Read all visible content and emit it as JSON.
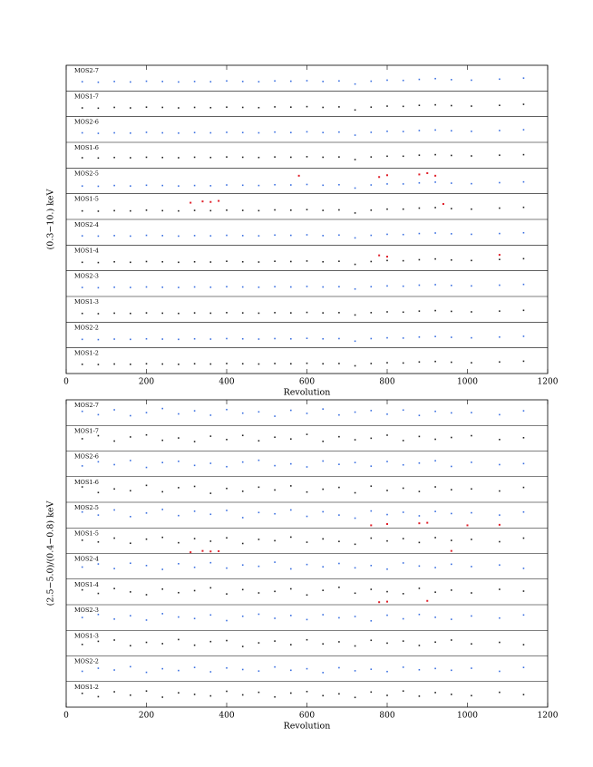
{
  "chart_data": [
    {
      "type": "scatter",
      "xlabel": "Revolution",
      "ylabel": "(0.3−10.) keV",
      "xlim": [
        0,
        1200
      ],
      "xticks": [
        0,
        200,
        400,
        600,
        800,
        1000,
        1200
      ],
      "ylim": [
        0,
        1
      ],
      "x": [
        40,
        80,
        120,
        160,
        200,
        240,
        280,
        320,
        360,
        400,
        440,
        480,
        520,
        560,
        600,
        640,
        680,
        720,
        760,
        800,
        840,
        880,
        920,
        960,
        1010,
        1080,
        1140
      ],
      "series": [
        {
          "name": "MOS2-7",
          "color": "#3a6fe0",
          "values": [
            0.36,
            0.34,
            0.37,
            0.35,
            0.38,
            0.37,
            0.35,
            0.37,
            0.36,
            0.39,
            0.37,
            0.36,
            0.39,
            0.38,
            0.4,
            0.37,
            0.39,
            0.27,
            0.38,
            0.42,
            0.41,
            0.45,
            0.48,
            0.44,
            0.42,
            0.46,
            0.5
          ]
        },
        {
          "name": "MOS1-7",
          "color": "#222222",
          "values": [
            0.34,
            0.33,
            0.36,
            0.34,
            0.37,
            0.36,
            0.34,
            0.36,
            0.35,
            0.37,
            0.36,
            0.35,
            0.38,
            0.37,
            0.39,
            0.36,
            0.38,
            0.26,
            0.37,
            0.41,
            0.4,
            0.44,
            0.46,
            0.43,
            0.41,
            0.44,
            0.48
          ]
        },
        {
          "name": "MOS2-6",
          "color": "#3a6fe0",
          "values": [
            0.37,
            0.35,
            0.37,
            0.36,
            0.39,
            0.37,
            0.36,
            0.38,
            0.37,
            0.39,
            0.38,
            0.37,
            0.4,
            0.38,
            0.41,
            0.38,
            0.4,
            0.28,
            0.39,
            0.43,
            0.42,
            0.46,
            0.48,
            0.45,
            0.43,
            0.46,
            0.49
          ]
        },
        {
          "name": "MOS1-6",
          "color": "#222222",
          "values": [
            0.4,
            0.39,
            0.41,
            0.4,
            0.42,
            0.41,
            0.4,
            0.42,
            0.41,
            0.43,
            0.42,
            0.41,
            0.43,
            0.42,
            0.44,
            0.42,
            0.43,
            0.33,
            0.43,
            0.46,
            0.46,
            0.5,
            0.52,
            0.49,
            0.47,
            0.5,
            0.52
          ]
        },
        {
          "name": "MOS2-5",
          "color": "#3a6fe0",
          "values": [
            0.3,
            0.29,
            0.32,
            0.3,
            0.33,
            0.32,
            0.3,
            0.32,
            0.31,
            0.34,
            0.33,
            0.32,
            0.35,
            0.34,
            0.36,
            0.33,
            0.35,
            0.22,
            0.34,
            0.38,
            0.38,
            0.42,
            0.45,
            0.41,
            0.39,
            0.43,
            0.46
          ],
          "highlight": {
            "color": "#e0202a",
            "x": [
              580,
              780,
              800,
              880,
              900,
              920
            ],
            "values": [
              0.7,
              0.65,
              0.72,
              0.75,
              0.8,
              0.7
            ]
          }
        },
        {
          "name": "MOS1-5",
          "color": "#222222",
          "values": [
            0.33,
            0.32,
            0.34,
            0.33,
            0.36,
            0.34,
            0.33,
            0.35,
            0.34,
            0.36,
            0.35,
            0.34,
            0.37,
            0.36,
            0.38,
            0.35,
            0.37,
            0.25,
            0.36,
            0.4,
            0.4,
            0.44,
            0.46,
            0.42,
            0.4,
            0.44,
            0.47
          ],
          "highlight": {
            "color": "#e0202a",
            "x": [
              310,
              340,
              360,
              380,
              940
            ],
            "values": [
              0.65,
              0.7,
              0.68,
              0.72,
              0.6
            ]
          }
        },
        {
          "name": "MOS2-4",
          "color": "#3a6fe0",
          "values": [
            0.36,
            0.35,
            0.37,
            0.35,
            0.38,
            0.37,
            0.35,
            0.37,
            0.36,
            0.38,
            0.37,
            0.36,
            0.39,
            0.38,
            0.4,
            0.37,
            0.39,
            0.28,
            0.38,
            0.42,
            0.41,
            0.45,
            0.47,
            0.44,
            0.42,
            0.45,
            0.48
          ]
        },
        {
          "name": "MOS1-4",
          "color": "#222222",
          "values": [
            0.33,
            0.32,
            0.35,
            0.33,
            0.36,
            0.35,
            0.33,
            0.35,
            0.34,
            0.37,
            0.35,
            0.34,
            0.37,
            0.36,
            0.38,
            0.35,
            0.37,
            0.25,
            0.36,
            0.4,
            0.39,
            0.43,
            0.46,
            0.42,
            0.4,
            0.44,
            0.47
          ],
          "highlight": {
            "color": "#e0202a",
            "x": [
              780,
              800,
              1080
            ],
            "values": [
              0.6,
              0.55,
              0.62
            ]
          }
        },
        {
          "name": "MOS2-3",
          "color": "#3a6fe0",
          "values": [
            0.35,
            0.34,
            0.36,
            0.35,
            0.37,
            0.36,
            0.35,
            0.37,
            0.36,
            0.38,
            0.37,
            0.36,
            0.38,
            0.37,
            0.39,
            0.37,
            0.38,
            0.29,
            0.38,
            0.41,
            0.4,
            0.44,
            0.46,
            0.43,
            0.41,
            0.44,
            0.47
          ]
        },
        {
          "name": "MOS1-3",
          "color": "#222222",
          "values": [
            0.34,
            0.33,
            0.35,
            0.34,
            0.36,
            0.35,
            0.34,
            0.36,
            0.35,
            0.37,
            0.36,
            0.35,
            0.37,
            0.36,
            0.38,
            0.36,
            0.37,
            0.28,
            0.37,
            0.4,
            0.39,
            0.43,
            0.45,
            0.42,
            0.4,
            0.43,
            0.46
          ]
        },
        {
          "name": "MOS2-2",
          "color": "#3a6fe0",
          "values": [
            0.33,
            0.32,
            0.34,
            0.33,
            0.35,
            0.34,
            0.33,
            0.35,
            0.34,
            0.36,
            0.35,
            0.34,
            0.36,
            0.35,
            0.37,
            0.35,
            0.36,
            0.26,
            0.36,
            0.39,
            0.38,
            0.42,
            0.44,
            0.41,
            0.39,
            0.42,
            0.45
          ]
        },
        {
          "name": "MOS1-2",
          "color": "#222222",
          "values": [
            0.36,
            0.35,
            0.37,
            0.36,
            0.38,
            0.37,
            0.36,
            0.38,
            0.37,
            0.39,
            0.38,
            0.37,
            0.39,
            0.38,
            0.4,
            0.38,
            0.39,
            0.3,
            0.39,
            0.42,
            0.41,
            0.45,
            0.47,
            0.44,
            0.42,
            0.45,
            0.48
          ]
        }
      ]
    },
    {
      "type": "scatter",
      "xlabel": "Revolution",
      "ylabel": "(2.5−5.0)/(0.4−0.8) keV",
      "xlim": [
        0,
        1200
      ],
      "xticks": [
        0,
        200,
        400,
        600,
        800,
        1000,
        1200
      ],
      "ylim": [
        0,
        1
      ],
      "x": [
        40,
        80,
        120,
        160,
        200,
        240,
        280,
        320,
        360,
        400,
        440,
        480,
        520,
        560,
        600,
        640,
        680,
        720,
        760,
        800,
        840,
        880,
        920,
        960,
        1010,
        1080,
        1140
      ],
      "series": [
        {
          "name": "MOS2-7",
          "color": "#3a6fe0",
          "values": [
            0.55,
            0.42,
            0.61,
            0.38,
            0.5,
            0.66,
            0.45,
            0.57,
            0.4,
            0.62,
            0.48,
            0.53,
            0.36,
            0.59,
            0.47,
            0.64,
            0.41,
            0.52,
            0.58,
            0.44,
            0.6,
            0.39,
            0.55,
            0.49,
            0.5,
            0.42,
            0.57
          ]
        },
        {
          "name": "MOS1-7",
          "color": "#222222",
          "values": [
            0.48,
            0.6,
            0.39,
            0.55,
            0.63,
            0.42,
            0.51,
            0.37,
            0.58,
            0.45,
            0.61,
            0.4,
            0.54,
            0.47,
            0.65,
            0.38,
            0.56,
            0.44,
            0.5,
            0.62,
            0.41,
            0.57,
            0.46,
            0.53,
            0.6,
            0.45,
            0.52
          ]
        },
        {
          "name": "MOS2-6",
          "color": "#3a6fe0",
          "values": [
            0.42,
            0.58,
            0.47,
            0.63,
            0.36,
            0.55,
            0.6,
            0.44,
            0.52,
            0.39,
            0.57,
            0.64,
            0.43,
            0.5,
            0.38,
            0.61,
            0.48,
            0.55,
            0.41,
            0.59,
            0.46,
            0.53,
            0.62,
            0.4,
            0.56,
            0.47,
            0.51
          ]
        },
        {
          "name": "MOS1-6",
          "color": "#222222",
          "values": [
            0.6,
            0.38,
            0.52,
            0.45,
            0.66,
            0.41,
            0.57,
            0.62,
            0.35,
            0.54,
            0.43,
            0.59,
            0.48,
            0.64,
            0.4,
            0.51,
            0.58,
            0.37,
            0.63,
            0.46,
            0.55,
            0.42,
            0.6,
            0.49,
            0.52,
            0.44,
            0.58
          ]
        },
        {
          "name": "MOS2-5",
          "color": "#3a6fe0",
          "values": [
            0.62,
            0.5,
            0.7,
            0.44,
            0.58,
            0.72,
            0.48,
            0.65,
            0.53,
            0.68,
            0.4,
            0.6,
            0.55,
            0.7,
            0.45,
            0.63,
            0.5,
            0.38,
            0.66,
            0.52,
            0.61,
            0.47,
            0.64,
            0.56,
            0.59,
            0.5,
            0.62
          ],
          "highlight": {
            "color": "#e0202a",
            "x": [
              760,
              800,
              880,
              900,
              1000,
              1080
            ],
            "values": [
              0.1,
              0.15,
              0.18,
              0.2,
              0.1,
              0.12
            ]
          }
        },
        {
          "name": "MOS1-5",
          "color": "#222222",
          "values": [
            0.52,
            0.45,
            0.6,
            0.4,
            0.56,
            0.63,
            0.42,
            0.58,
            0.48,
            0.61,
            0.39,
            0.55,
            0.5,
            0.64,
            0.44,
            0.57,
            0.47,
            0.36,
            0.6,
            0.49,
            0.58,
            0.43,
            0.62,
            0.51,
            0.55,
            0.46,
            0.6
          ],
          "highlight": {
            "color": "#e0202a",
            "x": [
              310,
              340,
              360,
              380,
              960
            ],
            "values": [
              0.05,
              0.1,
              0.08,
              0.09,
              0.1
            ]
          }
        },
        {
          "name": "MOS2-4",
          "color": "#3a6fe0",
          "values": [
            0.47,
            0.59,
            0.41,
            0.62,
            0.53,
            0.38,
            0.6,
            0.46,
            0.64,
            0.43,
            0.55,
            0.5,
            0.66,
            0.4,
            0.57,
            0.48,
            0.61,
            0.44,
            0.53,
            0.39,
            0.63,
            0.51,
            0.45,
            0.58,
            0.49,
            0.55,
            0.42
          ]
        },
        {
          "name": "MOS1-4",
          "color": "#222222",
          "values": [
            0.58,
            0.44,
            0.63,
            0.5,
            0.39,
            0.61,
            0.47,
            0.55,
            0.66,
            0.42,
            0.59,
            0.46,
            0.52,
            0.62,
            0.38,
            0.56,
            0.68,
            0.45,
            0.6,
            0.51,
            0.43,
            0.64,
            0.49,
            0.57,
            0.46,
            0.6,
            0.53
          ],
          "highlight": {
            "color": "#e0202a",
            "x": [
              780,
              800,
              900
            ],
            "values": [
              0.1,
              0.12,
              0.15
            ]
          }
        },
        {
          "name": "MOS2-3",
          "color": "#3a6fe0",
          "values": [
            0.5,
            0.62,
            0.44,
            0.57,
            0.4,
            0.65,
            0.52,
            0.46,
            0.6,
            0.38,
            0.55,
            0.63,
            0.47,
            0.58,
            0.42,
            0.61,
            0.49,
            0.54,
            0.37,
            0.59,
            0.45,
            0.62,
            0.51,
            0.43,
            0.56,
            0.48,
            0.6
          ]
        },
        {
          "name": "MOS1-3",
          "color": "#222222",
          "values": [
            0.45,
            0.57,
            0.62,
            0.4,
            0.53,
            0.48,
            0.64,
            0.42,
            0.56,
            0.6,
            0.37,
            0.51,
            0.58,
            0.44,
            0.63,
            0.47,
            0.55,
            0.39,
            0.61,
            0.5,
            0.58,
            0.41,
            0.54,
            0.62,
            0.47,
            0.53,
            0.44
          ]
        },
        {
          "name": "MOS2-2",
          "color": "#3a6fe0",
          "values": [
            0.4,
            0.52,
            0.45,
            0.58,
            0.36,
            0.5,
            0.43,
            0.55,
            0.38,
            0.53,
            0.47,
            0.41,
            0.57,
            0.44,
            0.5,
            0.35,
            0.54,
            0.42,
            0.48,
            0.39,
            0.56,
            0.46,
            0.51,
            0.44,
            0.52,
            0.4,
            0.55
          ]
        },
        {
          "name": "MOS1-2",
          "color": "#222222",
          "values": [
            0.54,
            0.41,
            0.6,
            0.47,
            0.63,
            0.39,
            0.56,
            0.5,
            0.44,
            0.62,
            0.48,
            0.58,
            0.4,
            0.55,
            0.61,
            0.45,
            0.52,
            0.38,
            0.59,
            0.46,
            0.63,
            0.43,
            0.57,
            0.5,
            0.45,
            0.58,
            0.49
          ]
        }
      ]
    }
  ]
}
